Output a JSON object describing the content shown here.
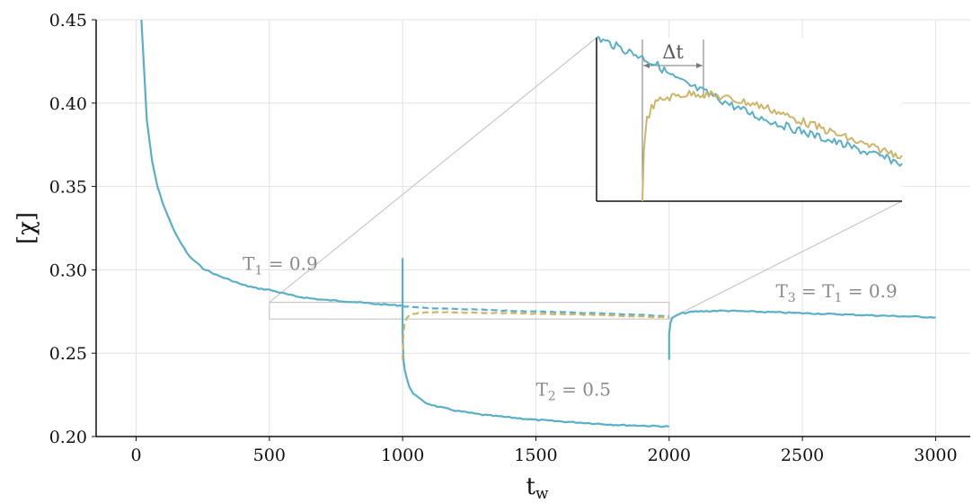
{
  "chart_data": {
    "type": "line",
    "xlabel_main": "t",
    "xlabel_sub": "w",
    "ylabel": "[χ]",
    "xlim": [
      -150,
      3130
    ],
    "ylim": [
      0.2,
      0.45
    ],
    "xticks": [
      0,
      500,
      1000,
      1500,
      2000,
      2500,
      3000
    ],
    "xtick_labels": [
      "0",
      "500",
      "1000",
      "1500",
      "2000",
      "2500",
      "3000"
    ],
    "yticks": [
      0.2,
      0.25,
      0.3,
      0.35,
      0.4,
      0.45
    ],
    "ytick_labels": [
      "0.20",
      "0.25",
      "0.30",
      "0.35",
      "0.40",
      "0.45"
    ],
    "grid": true,
    "colors": {
      "blue": "#5aafc8",
      "gold": "#cdb56a",
      "grid": "#e2e2e2",
      "annot": "#8a8a8a",
      "zoom": "#c8c8c8"
    },
    "series": [
      {
        "x": [
          20,
          40,
          60,
          80,
          100,
          130,
          160,
          200,
          250,
          300,
          350,
          400,
          450,
          500,
          600,
          700,
          800,
          900,
          1000
        ],
        "y": [
          0.45,
          0.39,
          0.365,
          0.35,
          0.34,
          0.328,
          0.318,
          0.308,
          0.301,
          0.297,
          0.294,
          0.291,
          0.289,
          0.288,
          0.284,
          0.282,
          0.281,
          0.2795,
          0.2785
        ],
        "color": "blue",
        "style": "solid"
      },
      {
        "x": [
          1000,
          1000,
          1004,
          1008,
          1015,
          1025,
          1040,
          1060,
          1090,
          1130,
          1200,
          1300,
          1400,
          1500,
          1600,
          1700,
          1800,
          1900,
          2000
        ],
        "y": [
          0.307,
          0.26,
          0.245,
          0.24,
          0.235,
          0.23,
          0.226,
          0.223,
          0.22,
          0.218,
          0.2155,
          0.213,
          0.2115,
          0.21,
          0.209,
          0.208,
          0.207,
          0.2065,
          0.206
        ],
        "color": "blue",
        "style": "solid"
      },
      {
        "x": [
          2000,
          2000,
          2005,
          2012,
          2025,
          2050,
          2100,
          2200,
          2300,
          2400,
          2500,
          2600,
          2700,
          2800,
          2900,
          3000
        ],
        "y": [
          0.246,
          0.262,
          0.268,
          0.271,
          0.2725,
          0.274,
          0.275,
          0.2755,
          0.275,
          0.2745,
          0.274,
          0.2735,
          0.273,
          0.2725,
          0.272,
          0.2715
        ],
        "color": "blue",
        "style": "solid"
      },
      {
        "x": [
          1000,
          1100,
          1200,
          1300,
          1400,
          1500,
          1600,
          1700,
          1800,
          1900,
          2000
        ],
        "y": [
          0.278,
          0.277,
          0.2765,
          0.276,
          0.2755,
          0.275,
          0.2745,
          0.274,
          0.2735,
          0.273,
          0.272
        ],
        "color": "blue",
        "style": "dashed"
      },
      {
        "x": [
          1000,
          1003,
          1008,
          1015,
          1025,
          1040,
          1060,
          1100,
          1200,
          1300,
          1400,
          1500,
          1600,
          1700,
          1800,
          1900,
          2000
        ],
        "y": [
          0.246,
          0.262,
          0.268,
          0.271,
          0.2725,
          0.2735,
          0.274,
          0.2745,
          0.2745,
          0.2742,
          0.274,
          0.2737,
          0.2733,
          0.273,
          0.2725,
          0.272,
          0.2715
        ],
        "color": "gold",
        "style": "dashed"
      }
    ],
    "annotations": [
      {
        "main": "T",
        "sub": "1",
        "rest": " = 0.9",
        "x": 400,
        "y": 0.3
      },
      {
        "main": "T",
        "sub": "2",
        "rest": " = 0.5",
        "x": 1500,
        "y": 0.2245
      },
      {
        "main": "T",
        "sub": "3",
        "rest": " = T",
        "sub2": "1",
        "rest2": " = 0.9",
        "x": 2400,
        "y": 0.2835
      }
    ],
    "zoom_box": {
      "x": [
        500,
        2000
      ],
      "y": [
        0.2705,
        0.2805
      ]
    },
    "inset": {
      "delta_label": "Δt",
      "xlim": [
        1000,
        1200
      ],
      "ylim": [
        0.2705,
        0.2805
      ],
      "blue": {
        "x": [
          1000,
          1010,
          1020,
          1030,
          1040,
          1050,
          1060,
          1075,
          1090,
          1105,
          1120,
          1140,
          1160,
          1180,
          1200
        ],
        "y": [
          0.2805,
          0.2801,
          0.2797,
          0.2793,
          0.2788,
          0.2781,
          0.2776,
          0.277,
          0.2763,
          0.2757,
          0.2752,
          0.2746,
          0.274,
          0.2734,
          0.2728
        ]
      },
      "gold": {
        "x": [
          1030,
          1031,
          1033,
          1036,
          1040,
          1045,
          1055,
          1065,
          1075,
          1085,
          1095,
          1105,
          1115,
          1125,
          1140,
          1160,
          1180,
          1200
        ],
        "y": [
          0.2705,
          0.2735,
          0.2755,
          0.2762,
          0.2766,
          0.2768,
          0.277,
          0.2771,
          0.277,
          0.2768,
          0.2766,
          0.2764,
          0.2761,
          0.2757,
          0.2752,
          0.2745,
          0.2738,
          0.2733
        ]
      },
      "dt_start": 1030,
      "dt_end": 1070
    }
  }
}
